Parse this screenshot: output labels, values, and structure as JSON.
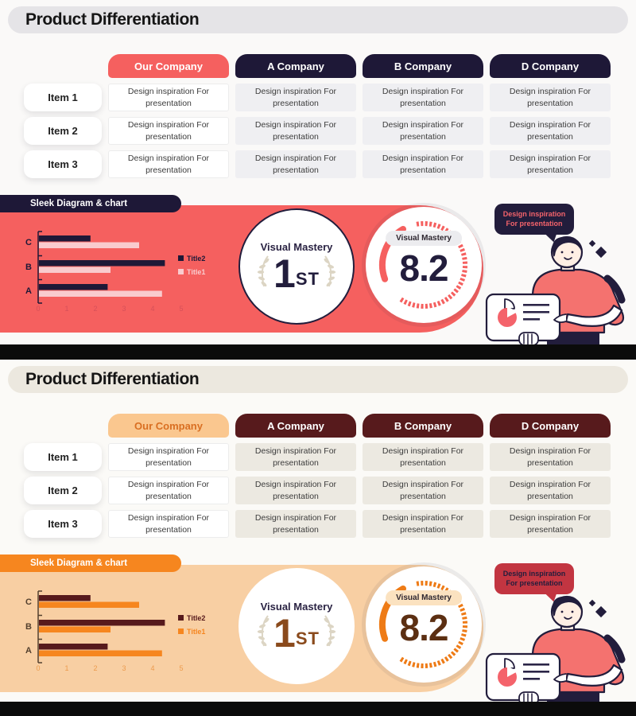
{
  "slides": [
    {
      "title": "Product Differentiation",
      "table": {
        "columns": [
          "Our Company",
          "A Company",
          "B Company",
          "D Company"
        ],
        "row_labels": [
          "Item 1",
          "Item 2",
          "Item 3"
        ],
        "cell_text": "Design inspiration For presentation"
      },
      "banner": {
        "label": "Sleek Diagram & chart"
      },
      "award": {
        "caption": "Visual Mastery",
        "rank_number": "1",
        "rank_suffix": "ST"
      },
      "gauge": {
        "caption": "Visual Mastery",
        "value": "8.2"
      },
      "speech_bubble": {
        "line1": "Design inspiration",
        "line2": "For presentation"
      },
      "colors": {
        "slide_bg": "#FAF9F8",
        "pill_bg": "#E5E4E7",
        "head_bg": "#1E1837",
        "our_head_bg": "#F5605F",
        "our_head_text": "#FFFFFF",
        "cell_bg": "#EFEFF2",
        "banner_bg": "#F5605F",
        "bpill_bg": "#1E1837",
        "s1": "#F9CBCE",
        "s2": "#1E1837",
        "axis": "#D65059",
        "cat": "#1E1837",
        "award_border": "#221D3C",
        "rank": "#221D3C",
        "gpill_bg": "#ECECEF",
        "gval": "#221D3C",
        "arc": "#F5605F",
        "bubble_bg": "#221D3C",
        "bubble_text": "#F4636B"
      }
    },
    {
      "title": "Product Differentiation",
      "table": {
        "columns": [
          "Our Company",
          "A Company",
          "B Company",
          "D Company"
        ],
        "row_labels": [
          "Item 1",
          "Item 2",
          "Item 3"
        ],
        "cell_text": "Design inspiration For presentation"
      },
      "banner": {
        "label": "Sleek Diagram & chart"
      },
      "award": {
        "caption": "Visual Mastery",
        "rank_number": "1",
        "rank_suffix": "ST"
      },
      "gauge": {
        "caption": "Visual Mastery",
        "value": "8.2"
      },
      "speech_bubble": {
        "line1": "Design inspiration",
        "line2": "For presentation"
      },
      "colors": {
        "slide_bg": "#FBFAF7",
        "pill_bg": "#ECE8DF",
        "head_bg": "#571A1C",
        "our_head_bg": "#FAC78F",
        "our_head_text": "#D96F22",
        "cell_bg": "#ECE9E1",
        "banner_bg": "#F8CFA3",
        "bpill_bg": "#F6861F",
        "s1": "#F6861F",
        "s2": "#571A1C",
        "axis": "#EC9B4E",
        "cat": "#54402E",
        "award_border": "#FFFFFF",
        "rank": "#8A4A1C",
        "gpill_bg": "#FBE2C0",
        "gval": "#5C2F12",
        "arc": "#EE7B16",
        "bubble_bg": "#C23541",
        "bubble_text": "#221D3C"
      }
    }
  ],
  "chart_data": [
    {
      "type": "bar",
      "orientation": "horizontal",
      "categories": [
        "C",
        "B",
        "A"
      ],
      "series": [
        {
          "name": "Title2",
          "values": [
            1.8,
            4.4,
            2.4
          ]
        },
        {
          "name": "Title1",
          "values": [
            3.5,
            2.5,
            4.3
          ]
        }
      ],
      "xlim": [
        0,
        5
      ],
      "xticks": [
        0,
        1,
        2,
        3,
        4,
        5
      ],
      "grid": false,
      "legend_position": "right",
      "title": ""
    },
    {
      "type": "bar",
      "orientation": "horizontal",
      "categories": [
        "C",
        "B",
        "A"
      ],
      "series": [
        {
          "name": "Title2",
          "values": [
            1.8,
            4.4,
            2.4
          ]
        },
        {
          "name": "Title1",
          "values": [
            3.5,
            2.5,
            4.3
          ]
        }
      ],
      "xlim": [
        0,
        5
      ],
      "xticks": [
        0,
        1,
        2,
        3,
        4,
        5
      ],
      "grid": false,
      "legend_position": "right",
      "title": ""
    }
  ]
}
